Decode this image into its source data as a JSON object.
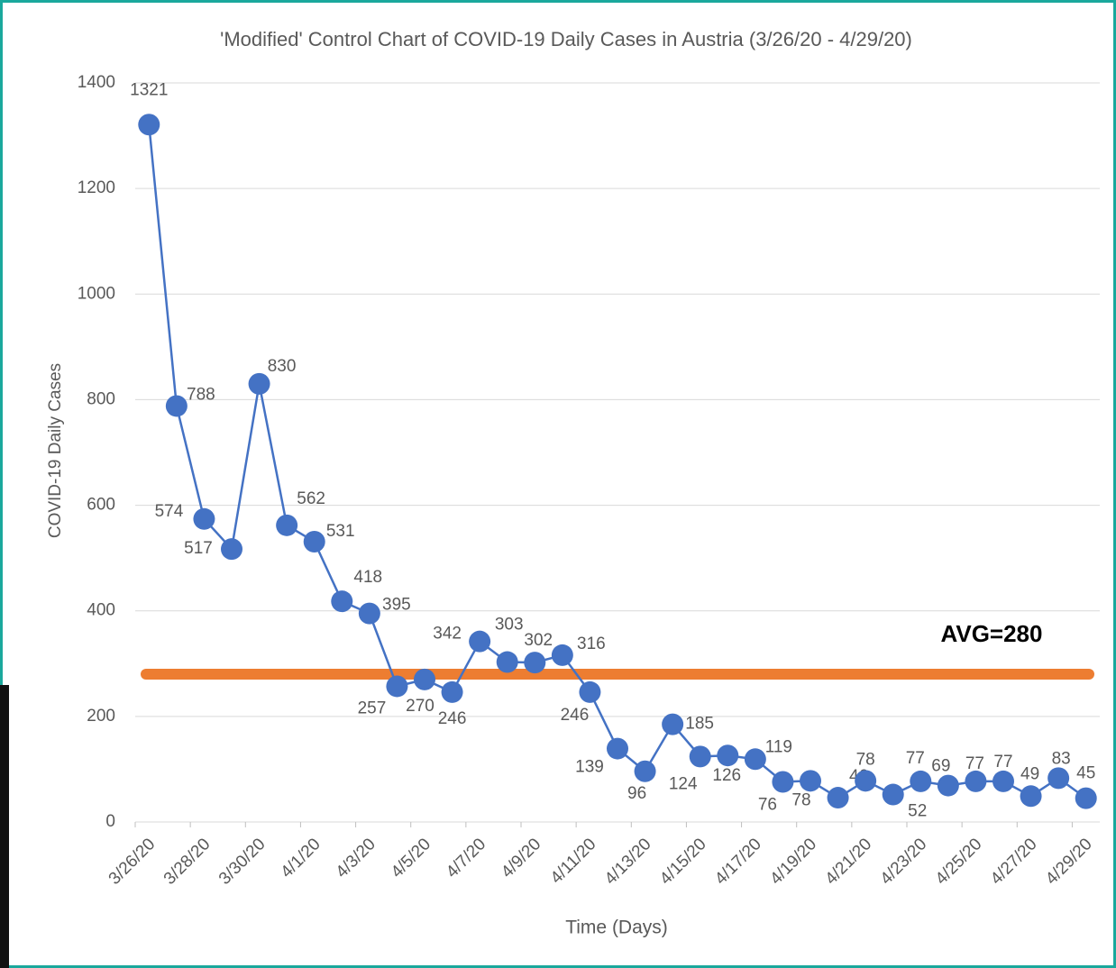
{
  "chart_data": {
    "type": "line",
    "title": "'Modified' Control Chart of COVID-19 Daily Cases in Austria (3/26/20 - 4/29/20)",
    "x_label": "Time (Days)",
    "y_label": "COVID-19 Daily Cases",
    "categories": [
      "3/26/20",
      null,
      "3/28/20",
      null,
      "3/30/20",
      null,
      "4/1/20",
      null,
      "4/3/20",
      null,
      "4/5/20",
      null,
      "4/7/20",
      null,
      "4/9/20",
      null,
      "4/11/20",
      null,
      "4/13/20",
      null,
      "4/15/20",
      null,
      "4/17/20",
      null,
      "4/19/20",
      null,
      "4/21/20",
      null,
      "4/23/20",
      null,
      "4/25/20",
      null,
      "4/27/20",
      null,
      "4/29/20"
    ],
    "series": [
      {
        "name": "Daily Cases",
        "color": "#4472c4",
        "values": [
          1321,
          788,
          574,
          517,
          830,
          562,
          531,
          418,
          395,
          257,
          270,
          246,
          342,
          303,
          302,
          316,
          246,
          139,
          96,
          185,
          124,
          126,
          119,
          76,
          78,
          46,
          78,
          52,
          77,
          69,
          77,
          77,
          49,
          83,
          45
        ]
      }
    ],
    "reference_line": {
      "value": 280,
      "label": "AVG=280",
      "color": "#ed7d31"
    },
    "ylim": [
      0,
      1400
    ],
    "yticks": [
      0,
      200,
      400,
      600,
      800,
      1000,
      1200,
      1400
    ],
    "grid": true
  }
}
